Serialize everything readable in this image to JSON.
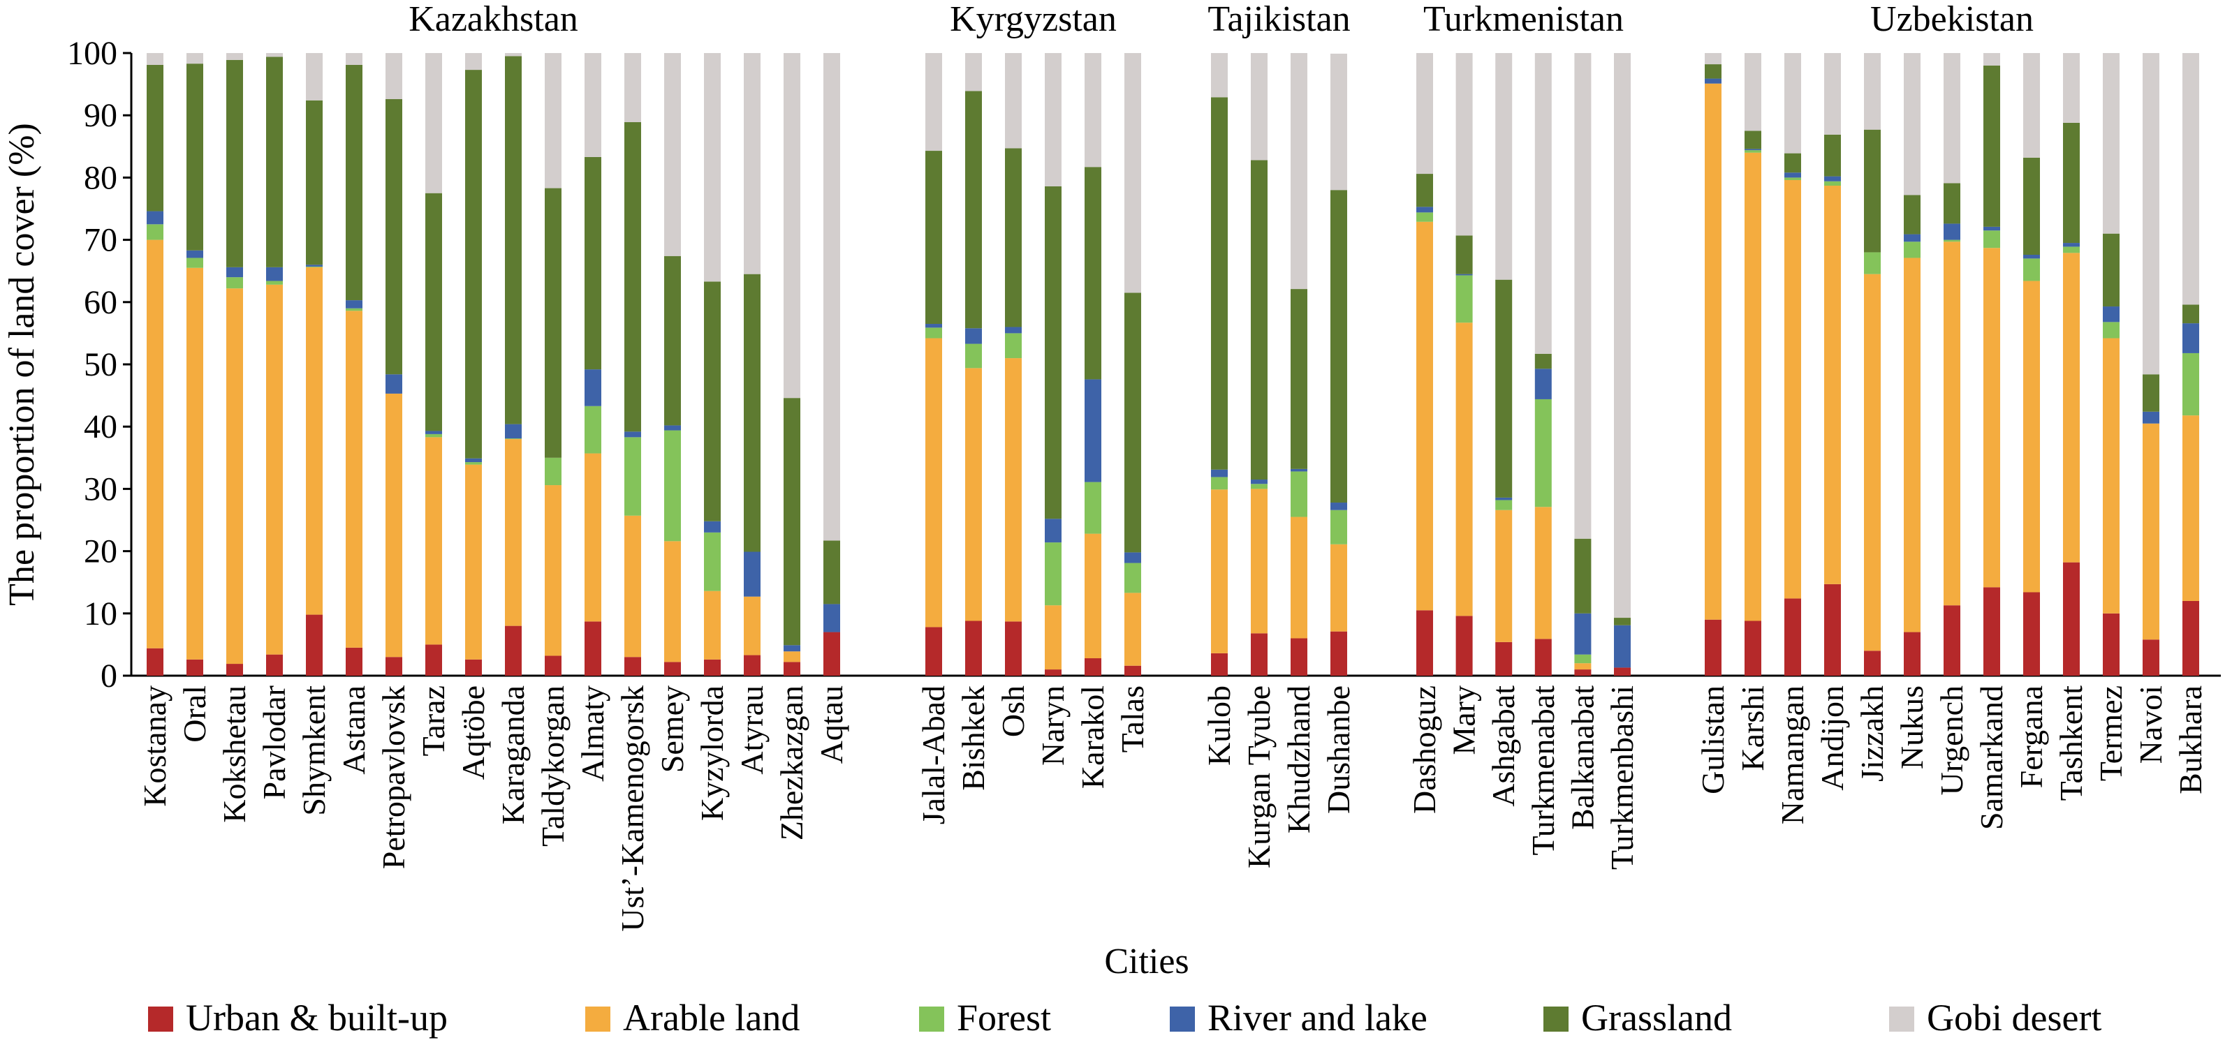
{
  "chart_data": {
    "type": "bar",
    "stacked": true,
    "xlabel": "Cities",
    "ylabel": "The proportion of land cover (%)",
    "ylim": [
      0,
      100
    ],
    "yticks": [
      0,
      10,
      20,
      30,
      40,
      50,
      60,
      70,
      80,
      90,
      100
    ],
    "legend_position": "bottom",
    "groups": [
      {
        "name": "Kazakhstan",
        "categories": [
          "Kostanay",
          "Oral",
          "Kokshetau",
          "Pavlodar",
          "Shymkent",
          "Astana",
          "Petropavlovsk",
          "Taraz",
          "Aqtöbe",
          "Karaganda",
          "Taldykorgan",
          "Almaty",
          "Ust’-Kamenogorsk",
          "Semey",
          "Kyzylorda",
          "Atyrau",
          "Zhezkazgan",
          "Aqtau"
        ]
      },
      {
        "name": "Kyrgyzstan",
        "categories": [
          "Jalal-Abad",
          "Bishkek",
          "Osh",
          "Naryn",
          "Karakol",
          "Talas"
        ]
      },
      {
        "name": "Tajikistan",
        "categories": [
          "Kulob",
          "Kurgan Tyube",
          "Khudzhand",
          "Dushanbe"
        ]
      },
      {
        "name": "Turkmenistan",
        "categories": [
          "Dashoguz",
          "Mary",
          "Ashgabat",
          "Turkmenabat",
          "Balkanabat",
          "Turkmenbashi"
        ]
      },
      {
        "name": "Uzbekistan",
        "categories": [
          "Gulistan",
          "Karshi",
          "Namangan",
          "Andijon",
          "Jizzakh",
          "Nukus",
          "Urgench",
          "Samarkand",
          "Fergana",
          "Tashkent",
          "Termez",
          "Navoi",
          "Bukhara"
        ]
      }
    ],
    "series": [
      {
        "name": "Urban & built-up",
        "color": "#b5292a",
        "values": [
          4.4,
          2.6,
          1.9,
          3.4,
          9.8,
          4.5,
          3.0,
          5.0,
          2.6,
          8.0,
          3.2,
          8.7,
          3.0,
          2.2,
          2.6,
          3.3,
          2.2,
          7.0,
          7.8,
          8.8,
          8.7,
          1.0,
          2.8,
          1.6,
          3.6,
          6.8,
          6.0,
          7.1,
          10.5,
          9.6,
          5.4,
          5.9,
          1.0,
          1.3,
          9.0,
          8.8,
          12.4,
          14.7,
          4.0,
          7.0,
          11.3,
          14.2,
          13.4,
          18.2,
          10.0,
          5.8,
          12.0
        ]
      },
      {
        "name": "Arable land",
        "color": "#f4ac3f",
        "values": [
          65.6,
          62.9,
          60.3,
          59.4,
          55.8,
          54.1,
          42.3,
          33.3,
          31.3,
          30.0,
          27.4,
          27.0,
          22.7,
          19.4,
          11.0,
          9.4,
          1.7,
          0.0,
          46.4,
          40.6,
          42.3,
          10.3,
          20.0,
          11.7,
          26.3,
          23.2,
          19.5,
          14.0,
          62.4,
          47.1,
          21.2,
          21.2,
          1.0,
          0.0,
          86.1,
          75.2,
          67.2,
          64.0,
          60.5,
          60.1,
          58.4,
          54.5,
          50.0,
          49.7,
          44.2,
          34.7,
          29.8
        ]
      },
      {
        "name": "Forest",
        "color": "#84c35a",
        "values": [
          2.5,
          1.6,
          1.8,
          0.6,
          0.1,
          0.4,
          0.0,
          0.5,
          0.4,
          0.1,
          4.4,
          7.6,
          12.6,
          17.8,
          9.4,
          0.0,
          0.0,
          0.0,
          1.7,
          3.9,
          4.0,
          10.1,
          8.3,
          4.8,
          2.0,
          0.8,
          7.3,
          5.5,
          1.5,
          7.6,
          1.6,
          17.3,
          1.4,
          0.0,
          0.0,
          0.4,
          0.4,
          0.7,
          3.5,
          2.6,
          0.3,
          2.8,
          3.6,
          1.0,
          2.6,
          0.0,
          10.0
        ]
      },
      {
        "name": "River and lake",
        "color": "#3e63a8",
        "values": [
          2.1,
          1.2,
          1.6,
          2.2,
          0.3,
          1.3,
          3.1,
          0.5,
          0.6,
          2.3,
          0.0,
          5.9,
          0.9,
          0.8,
          1.8,
          7.2,
          1.0,
          4.5,
          0.6,
          2.5,
          1.0,
          3.8,
          16.5,
          1.7,
          1.2,
          0.7,
          0.4,
          1.2,
          0.9,
          0.2,
          0.4,
          4.9,
          6.6,
          6.8,
          0.8,
          0.2,
          0.8,
          0.8,
          0.0,
          1.2,
          2.6,
          0.6,
          0.6,
          0.6,
          2.5,
          1.9,
          4.8
        ]
      },
      {
        "name": "Grassland",
        "color": "#5e7b31",
        "values": [
          23.5,
          30.0,
          33.3,
          33.8,
          26.4,
          37.8,
          44.2,
          38.2,
          62.4,
          59.1,
          43.3,
          34.1,
          49.7,
          27.2,
          38.5,
          44.6,
          39.7,
          10.2,
          27.8,
          38.1,
          28.7,
          53.4,
          34.1,
          41.7,
          59.8,
          51.3,
          28.9,
          50.2,
          5.3,
          6.2,
          35.0,
          2.4,
          12.0,
          1.2,
          2.3,
          2.9,
          3.1,
          6.7,
          19.7,
          6.3,
          6.5,
          25.9,
          15.6,
          19.3,
          11.7,
          6.0,
          3.0
        ]
      },
      {
        "name": "Gobi desert",
        "color": "#d3cecd",
        "values": [
          1.9,
          1.7,
          1.1,
          0.6,
          7.6,
          1.9,
          7.4,
          22.5,
          2.7,
          0.5,
          21.7,
          16.7,
          11.1,
          32.6,
          36.7,
          35.5,
          55.4,
          78.3,
          15.7,
          6.1,
          15.3,
          21.4,
          18.3,
          38.5,
          7.1,
          17.2,
          37.9,
          21.9,
          19.4,
          29.3,
          36.4,
          48.3,
          78.0,
          90.7,
          1.8,
          12.5,
          16.1,
          13.1,
          12.3,
          22.8,
          20.9,
          2.0,
          16.8,
          11.2,
          29.0,
          51.6,
          40.4
        ]
      }
    ]
  }
}
